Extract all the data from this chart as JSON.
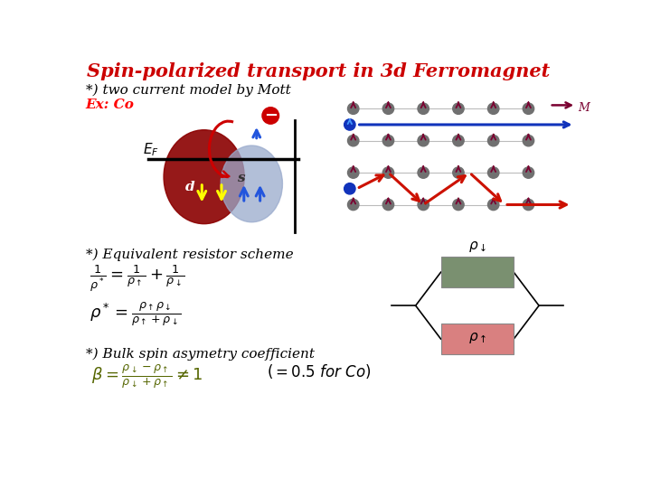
{
  "title": "Spin-polarized transport in 3d Ferromagnet",
  "title_color": "#cc0000",
  "bg_color": "#ffffff",
  "subtitle": "*) two current model by Mott",
  "ex_label": "Ex: Co",
  "section2": "*) Equivalent resistor scheme",
  "section3": "*) Bulk spin asymetry coefficient",
  "rho_up_color": "#d98080",
  "rho_down_color": "#7a9070",
  "atom_color": "#707070",
  "spin_color": "#7a0030",
  "blue_electron_color": "#1133bb",
  "red_scatter_color": "#cc1100",
  "M_arrow_color": "#7a0030",
  "d_band_color": "#8b0000",
  "s_band_color": "#99aacc",
  "ef_line_color": "#000000"
}
